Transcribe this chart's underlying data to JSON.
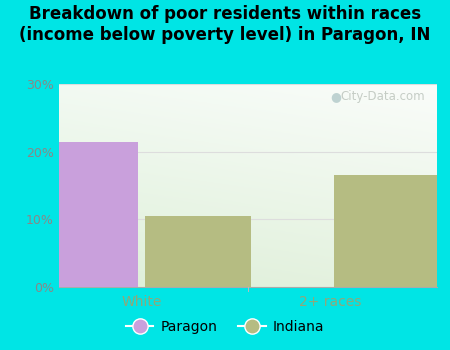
{
  "title": "Breakdown of poor residents within races\n(income below poverty level) in Paragon, IN",
  "categories": [
    "White",
    "2+ races"
  ],
  "paragon_values": [
    21.5,
    0
  ],
  "indiana_values": [
    10.5,
    16.5
  ],
  "paragon_color": "#c9a0dc",
  "indiana_color": "#b5bc82",
  "ylim": [
    0,
    30
  ],
  "yticks": [
    0,
    10,
    20,
    30
  ],
  "ytick_labels": [
    "0%",
    "10%",
    "20%",
    "30%"
  ],
  "bg_color": "#00e5e5",
  "bar_width": 0.28,
  "legend_paragon": "Paragon",
  "legend_indiana": "Indiana",
  "watermark": "City-Data.com",
  "xlabel_color": "#8fa87a",
  "ylabel_color": "#888888",
  "title_fontsize": 12,
  "grid_color": "#dddddd"
}
